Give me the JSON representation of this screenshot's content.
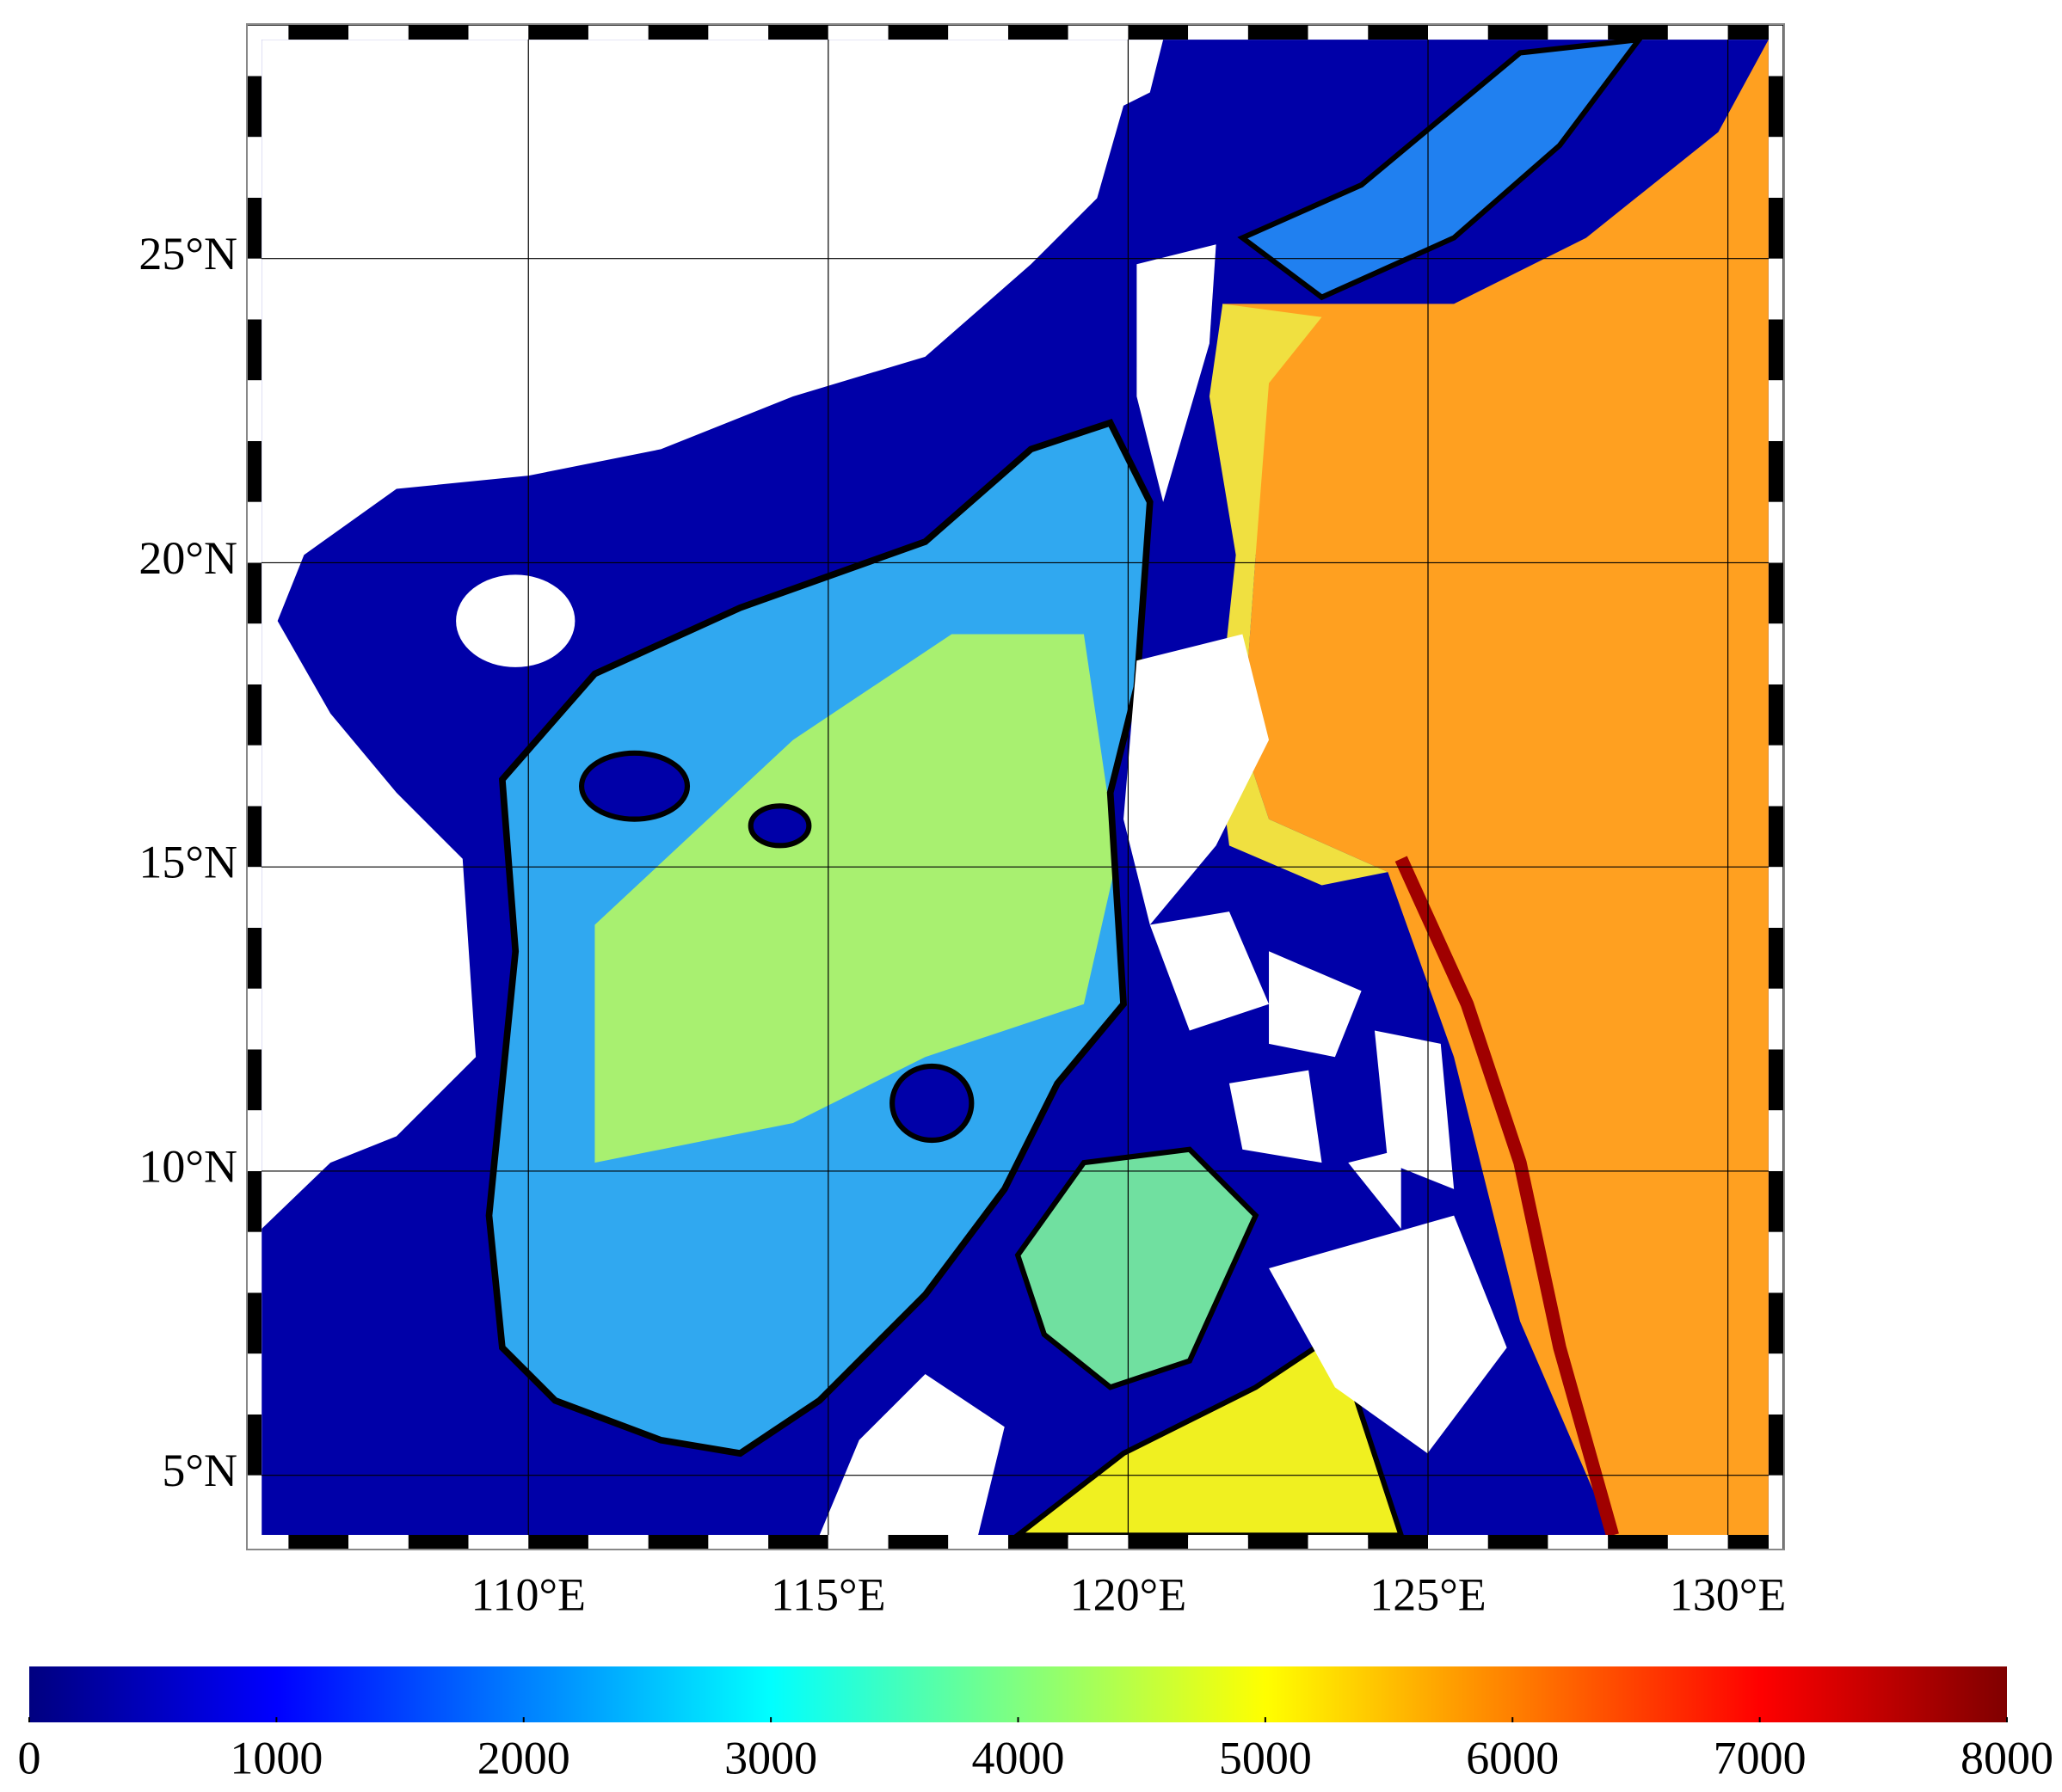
{
  "chart_data": {
    "type": "map",
    "xlim": [
      105.55,
      130.68
    ],
    "ylim": [
      4.02,
      28.6
    ],
    "xticks": [
      {
        "value": 110,
        "label": "110°E"
      },
      {
        "value": 115,
        "label": "115°E"
      },
      {
        "value": 120,
        "label": "120°E"
      },
      {
        "value": 125,
        "label": "125°E"
      },
      {
        "value": 130,
        "label": "130°E"
      }
    ],
    "yticks": [
      {
        "value": 5,
        "label": "5°N"
      },
      {
        "value": 10,
        "label": "10°N"
      },
      {
        "value": 15,
        "label": "15°N"
      },
      {
        "value": 20,
        "label": "20°N"
      },
      {
        "value": 25,
        "label": "25°N"
      }
    ],
    "grid": true,
    "colorbar": {
      "colormap": "jet",
      "clim": [
        0,
        8000
      ],
      "ticks": [
        0,
        1000,
        2000,
        3000,
        4000,
        5000,
        6000,
        7000,
        8000
      ]
    }
  }
}
